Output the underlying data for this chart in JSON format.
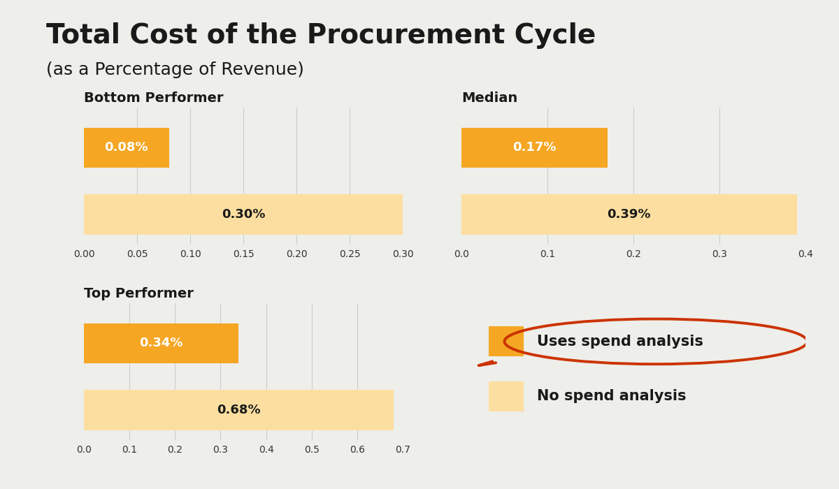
{
  "title": "Total Cost of the Procurement Cycle",
  "subtitle": "(as a Percentage of Revenue)",
  "background_color": "#eeeeeb",
  "charts": [
    {
      "title": "Bottom Performer",
      "spend_analysis_value": 0.08,
      "no_spend_analysis_value": 0.3,
      "xlim": [
        0,
        0.3
      ],
      "xticks": [
        0.0,
        0.05,
        0.1,
        0.15,
        0.2,
        0.25,
        0.3
      ],
      "xtick_labels": [
        "0.00",
        "0.05",
        "0.10",
        "0.15",
        "0.20",
        "0.25",
        "0.30"
      ]
    },
    {
      "title": "Median",
      "spend_analysis_value": 0.17,
      "no_spend_analysis_value": 0.39,
      "xlim": [
        0,
        0.4
      ],
      "xticks": [
        0.0,
        0.1,
        0.2,
        0.3,
        0.4
      ],
      "xtick_labels": [
        "0.0",
        "0.1",
        "0.2",
        "0.3",
        "0.4"
      ]
    },
    {
      "title": "Top Performer",
      "spend_analysis_value": 0.34,
      "no_spend_analysis_value": 0.68,
      "xlim": [
        0,
        0.7
      ],
      "xticks": [
        0.0,
        0.1,
        0.2,
        0.3,
        0.4,
        0.5,
        0.6,
        0.7
      ],
      "xtick_labels": [
        "0.0",
        "0.1",
        "0.2",
        "0.3",
        "0.4",
        "0.5",
        "0.6",
        "0.7"
      ]
    }
  ],
  "color_spend_analysis": "#F5A623",
  "color_no_spend": "#FCDFA0",
  "color_text_white": "#FFFFFF",
  "color_text_dark": "#1a1a1a",
  "legend_circle_color": "#CC3300",
  "spend_label": "Uses spend analysis",
  "no_spend_label": "No spend analysis"
}
